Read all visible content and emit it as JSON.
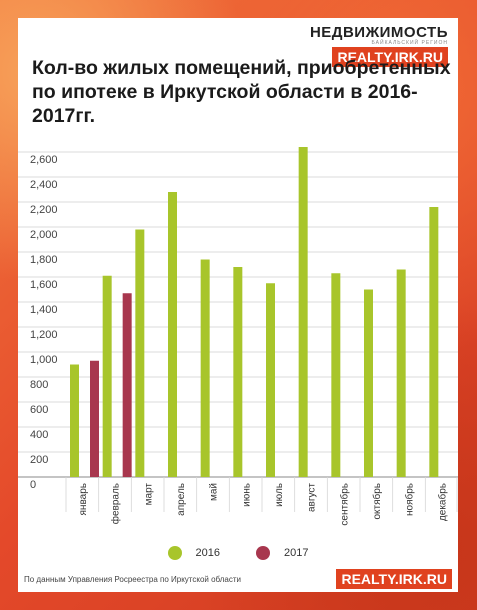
{
  "brand": {
    "name": "НЕДВИЖИМОСТЬ",
    "region": "БАЙКАЛЬСКИЙ РЕГИОН",
    "url": "REALTY.IRK.RU"
  },
  "source_note": "По данным Управления Росреестра по Иркутской области",
  "colors": {
    "2016": "#a8c52b",
    "2017": "#a8374e"
  },
  "chart_data": {
    "type": "bar",
    "title": "Кол-во жилых помещений, приобретенных по ипотеке в Иркутской области в 2016-2017гг.",
    "xlabel": "",
    "ylabel": "",
    "ylim": [
      0,
      2600
    ],
    "yticks": [
      "0",
      "200",
      "400",
      "600",
      "800",
      "1,000",
      "1,200",
      "1,400",
      "1,600",
      "1,800",
      "2,000",
      "2,200",
      "2,400",
      "2,600"
    ],
    "grid": true,
    "legend_position": "bottom",
    "categories": [
      "январь",
      "февраль",
      "март",
      "апрель",
      "май",
      "июнь",
      "июль",
      "август",
      "сентябрь",
      "октябрь",
      "ноябрь",
      "декабрь"
    ],
    "series": [
      {
        "name": "2016",
        "values": [
          900,
          1610,
          1980,
          2280,
          1740,
          1680,
          1550,
          2640,
          1630,
          1500,
          1660,
          2160
        ]
      },
      {
        "name": "2017",
        "values": [
          930,
          1470,
          null,
          null,
          null,
          null,
          null,
          null,
          null,
          null,
          null,
          null
        ]
      }
    ]
  }
}
